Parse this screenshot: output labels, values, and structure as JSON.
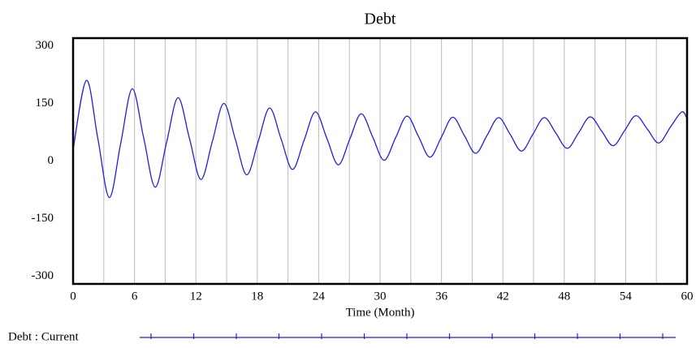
{
  "chart_data": {
    "type": "line",
    "title": "Debt",
    "x_label": "Time (Month)",
    "x": [
      0,
      1.3,
      2.42,
      3.54,
      4.66,
      5.78,
      6.9,
      8.02,
      9.14,
      10.25,
      11.37,
      12.49,
      13.61,
      14.73,
      15.85,
      16.97,
      18.09,
      19.2,
      20.32,
      21.44,
      22.56,
      23.68,
      24.8,
      25.92,
      27.04,
      28.15,
      29.27,
      30.39,
      31.51,
      32.63,
      33.75,
      34.87,
      35.99,
      37.1,
      38.22,
      39.34,
      40.46,
      41.58,
      42.7,
      43.82,
      44.94,
      46.05,
      47.17,
      48.29,
      49.41,
      50.53,
      51.65,
      52.77,
      53.89,
      55.0,
      56.12,
      57.24,
      58.36,
      59.48,
      60
    ],
    "series": [
      {
        "name": "Debt : Current",
        "color": "#1f1fe0",
        "values": [
          30,
          210,
          58,
          -95,
          47,
          188,
          60,
          -68,
          49,
          165,
          59,
          -48,
          51,
          150,
          57,
          -36,
          51,
          138,
          58,
          -22,
          53,
          128,
          59,
          -10,
          57,
          123,
          63,
          2,
          60,
          117,
          64,
          10,
          62,
          114,
          67,
          20,
          67,
          113,
          70,
          26,
          70,
          113,
          73,
          33,
          74,
          115,
          78,
          40,
          79,
          118,
          83,
          47,
          88,
          128,
          110
        ]
      }
    ],
    "xlim": [
      0,
      60
    ],
    "xticks": [
      0,
      6,
      12,
      18,
      24,
      30,
      36,
      42,
      48,
      54,
      60
    ],
    "minor_xticks": [
      3,
      9,
      15,
      21,
      27,
      33,
      39,
      45,
      51,
      57
    ],
    "ylim": [
      -320,
      320
    ],
    "yticks": [
      -300,
      -150,
      0,
      150,
      300
    ],
    "grid": true
  }
}
